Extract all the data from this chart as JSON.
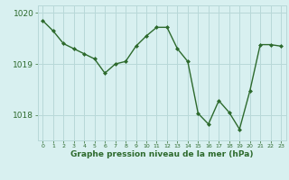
{
  "x": [
    0,
    1,
    2,
    3,
    4,
    5,
    6,
    7,
    8,
    9,
    10,
    11,
    12,
    13,
    14,
    15,
    16,
    17,
    18,
    19,
    20,
    21,
    22,
    23
  ],
  "y": [
    1019.85,
    1019.65,
    1019.4,
    1019.3,
    1019.2,
    1019.1,
    1018.82,
    1019.0,
    1019.05,
    1019.35,
    1019.55,
    1019.72,
    1019.72,
    1019.3,
    1019.05,
    1018.03,
    1017.82,
    1018.28,
    1018.05,
    1017.72,
    1018.47,
    1019.38,
    1019.38,
    1019.35
  ],
  "line_color": "#2d6a2d",
  "marker_color": "#2d6a2d",
  "bg_color": "#d8f0f0",
  "grid_color": "#b8d8d8",
  "xlabel": "Graphe pression niveau de la mer (hPa)",
  "xlabel_color": "#2d6a2d",
  "tick_color": "#2d6a2d",
  "ylim": [
    1017.5,
    1020.15
  ],
  "yticks": [
    1018,
    1019,
    1020
  ],
  "xticks": [
    0,
    1,
    2,
    3,
    4,
    5,
    6,
    7,
    8,
    9,
    10,
    11,
    12,
    13,
    14,
    15,
    16,
    17,
    18,
    19,
    20,
    21,
    22,
    23
  ]
}
